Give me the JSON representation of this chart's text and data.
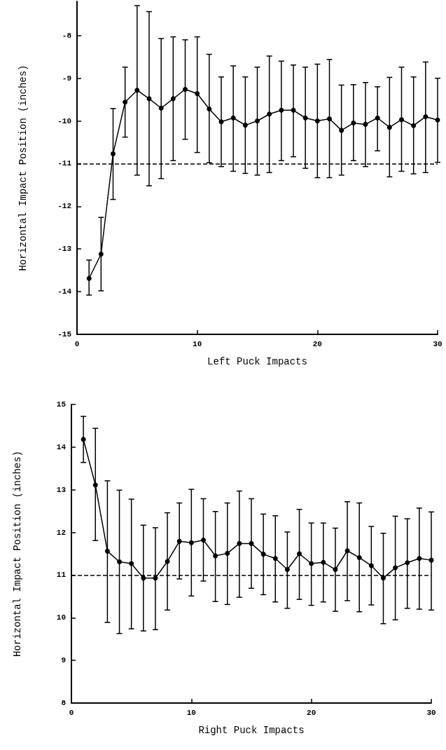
{
  "chart_data": [
    {
      "type": "line",
      "xlabel": "Left Puck Impacts",
      "ylabel": "Horizontal Impact Position (inches)",
      "x": [
        1,
        2,
        3,
        4,
        5,
        6,
        7,
        8,
        9,
        10,
        11,
        12,
        13,
        14,
        15,
        16,
        17,
        18,
        19,
        20,
        21,
        22,
        23,
        24,
        25,
        26,
        27,
        28,
        29,
        30
      ],
      "xlim": [
        0,
        30
      ],
      "xticks": [
        0,
        10,
        20,
        30
      ],
      "ylim": [
        -15,
        -7.2
      ],
      "yticks": [
        -15,
        -14,
        -13,
        -12,
        -11,
        -10,
        -9,
        -8
      ],
      "marker": "circle",
      "line_style": "solid",
      "series": [
        {
          "color": "#000000",
          "values": [
            -13.69,
            -13.12,
            -10.77,
            -9.56,
            -9.28,
            -9.48,
            -9.7,
            -9.48,
            -9.26,
            -9.36,
            -9.72,
            -10.02,
            -9.93,
            -10.1,
            -10.0,
            -9.84,
            -9.75,
            -9.75,
            -9.93,
            -10.0,
            -9.95,
            -10.22,
            -10.05,
            -10.08,
            -9.93,
            -10.15,
            -9.97,
            -10.11,
            -9.9,
            -9.98
          ],
          "errors": [
            [
              -14.08,
              -13.26
            ],
            [
              -13.98,
              -12.26
            ],
            [
              -11.84,
              -9.71
            ],
            [
              -10.38,
              -8.74
            ],
            [
              -11.27,
              -7.3
            ],
            [
              -11.52,
              -7.44
            ],
            [
              -11.35,
              -8.07
            ],
            [
              -10.93,
              -8.03
            ],
            [
              -10.43,
              -8.1
            ],
            [
              -10.74,
              -8.03
            ],
            [
              -10.98,
              -8.44
            ],
            [
              -11.07,
              -8.97
            ],
            [
              -11.18,
              -8.71
            ],
            [
              -11.23,
              -8.97
            ],
            [
              -11.27,
              -8.74
            ],
            [
              -11.21,
              -8.48
            ],
            [
              -10.93,
              -8.6
            ],
            [
              -10.84,
              -8.69
            ],
            [
              -11.11,
              -8.74
            ],
            [
              -11.33,
              -8.67
            ],
            [
              -11.33,
              -8.56
            ],
            [
              -11.27,
              -9.16
            ],
            [
              -10.93,
              -9.15
            ],
            [
              -11.07,
              -9.1
            ],
            [
              -10.7,
              -9.2
            ],
            [
              -11.31,
              -8.98
            ],
            [
              -11.18,
              -8.74
            ],
            [
              -11.24,
              -8.97
            ],
            [
              -11.21,
              -8.62
            ],
            [
              -10.97,
              -9.0
            ]
          ]
        }
      ],
      "ref_lines": [
        {
          "axis": "y",
          "value": -11,
          "line_style": "dashed",
          "color": "#000000"
        }
      ]
    },
    {
      "type": "line",
      "xlabel": "Right Puck Impacts",
      "ylabel": "Horizontal Impact Position (inches)",
      "x": [
        1,
        2,
        3,
        4,
        5,
        6,
        7,
        8,
        9,
        10,
        11,
        12,
        13,
        14,
        15,
        16,
        17,
        18,
        19,
        20,
        21,
        22,
        23,
        24,
        25,
        26,
        27,
        28,
        29,
        30
      ],
      "xlim": [
        0,
        30
      ],
      "xticks": [
        0,
        10,
        20,
        30
      ],
      "ylim": [
        8,
        15
      ],
      "yticks": [
        8,
        9,
        10,
        11,
        12,
        13,
        14,
        15
      ],
      "marker": "circle",
      "line_style": "solid",
      "series": [
        {
          "color": "#000000",
          "values": [
            14.18,
            13.11,
            11.56,
            11.31,
            11.27,
            10.93,
            10.93,
            11.32,
            11.79,
            11.76,
            11.82,
            11.45,
            11.51,
            11.74,
            11.74,
            11.49,
            11.39,
            11.13,
            11.5,
            11.27,
            11.3,
            11.13,
            11.57,
            11.41,
            11.22,
            10.93,
            11.17,
            11.29,
            11.39,
            11.35
          ],
          "errors": [
            [
              13.64,
              14.72
            ],
            [
              11.81,
              14.44
            ],
            [
              9.89,
              13.21
            ],
            [
              9.63,
              12.99
            ],
            [
              9.74,
              12.78
            ],
            [
              9.69,
              12.17
            ],
            [
              9.72,
              12.11
            ],
            [
              10.18,
              12.46
            ],
            [
              10.91,
              12.69
            ],
            [
              10.51,
              13.01
            ],
            [
              10.86,
              12.79
            ],
            [
              10.38,
              12.49
            ],
            [
              10.31,
              12.69
            ],
            [
              10.48,
              12.97
            ],
            [
              10.69,
              12.79
            ],
            [
              10.54,
              12.43
            ],
            [
              10.37,
              12.39
            ],
            [
              10.22,
              12.01
            ],
            [
              10.43,
              12.54
            ],
            [
              10.29,
              12.22
            ],
            [
              10.37,
              12.22
            ],
            [
              10.15,
              12.1
            ],
            [
              10.4,
              12.72
            ],
            [
              10.14,
              12.69
            ],
            [
              10.3,
              12.14
            ],
            [
              9.86,
              11.98
            ],
            [
              9.95,
              12.38
            ],
            [
              10.22,
              12.32
            ],
            [
              10.2,
              12.57
            ],
            [
              10.18,
              12.48
            ]
          ]
        }
      ],
      "ref_lines": [
        {
          "axis": "y",
          "value": 11,
          "line_style": "dashed",
          "color": "#000000"
        }
      ]
    }
  ]
}
